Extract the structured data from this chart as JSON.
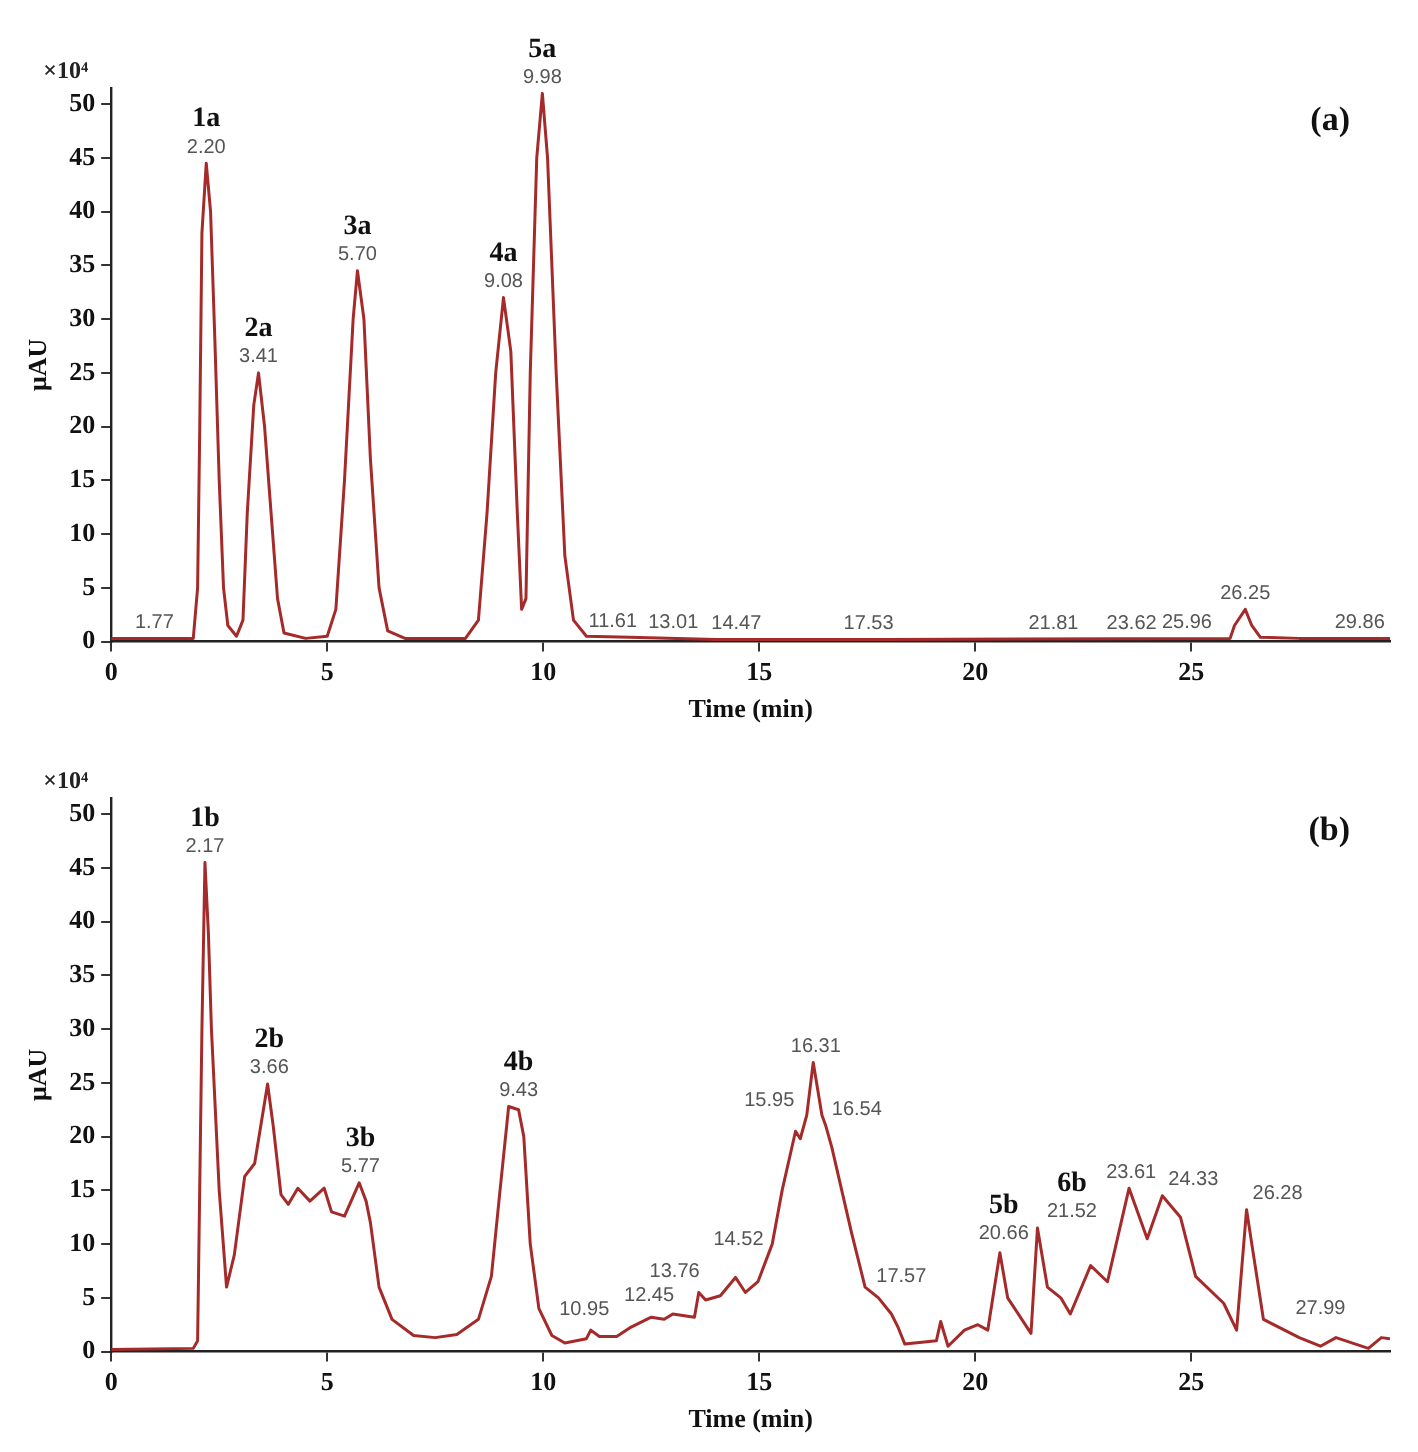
{
  "chart_data": [
    {
      "type": "line",
      "xlabel": "Time (min)",
      "ylabel": "μAU",
      "xlim": [
        0,
        29.6
      ],
      "ylim": [
        0,
        51.5
      ],
      "xticks": [
        0,
        5,
        10,
        15,
        20,
        25
      ],
      "yticks": [
        0,
        5,
        10,
        15,
        20,
        25,
        30,
        35,
        40,
        45,
        50
      ],
      "legend": false,
      "marker": "none",
      "line_style": "solid",
      "series": [
        {
          "color": "#a52a2a",
          "x": [
            0,
            1.9,
            2.0,
            2.05,
            2.1,
            2.2,
            2.3,
            2.4,
            2.5,
            2.6,
            2.7,
            2.9,
            3.05,
            3.15,
            3.3,
            3.41,
            3.55,
            3.7,
            3.85,
            4.0,
            4.5,
            5.0,
            5.2,
            5.4,
            5.6,
            5.7,
            5.85,
            6.0,
            6.2,
            6.4,
            6.8,
            8.2,
            8.5,
            8.7,
            8.9,
            9.08,
            9.25,
            9.4,
            9.5,
            9.6,
            9.7,
            9.85,
            9.98,
            10.1,
            10.3,
            10.5,
            10.7,
            11.0,
            12,
            14,
            18,
            25.9,
            26.0,
            26.25,
            26.4,
            26.6,
            27.5,
            29.6
          ],
          "values": [
            0.3,
            0.3,
            5,
            20,
            38,
            44.5,
            40,
            28,
            15,
            5,
            1.5,
            0.5,
            2,
            12,
            22,
            25,
            20,
            12,
            4,
            0.8,
            0.3,
            0.5,
            3,
            15,
            30,
            34.5,
            30,
            17,
            5,
            1,
            0.3,
            0.3,
            2,
            12,
            25,
            32,
            27,
            12,
            3,
            4,
            25,
            45,
            51,
            45,
            25,
            8,
            2,
            0.5,
            0.4,
            0.2,
            0.2,
            0.3,
            1.5,
            3.0,
            1.5,
            0.4,
            0.3,
            0.3
          ]
        }
      ],
      "annotations": [
        "×10⁴",
        "(a)",
        {
          "text": "2.20",
          "x": 2.2,
          "y": 44.5
        },
        {
          "text": "1a",
          "x": 2.2,
          "y": 44.5
        },
        {
          "text": "3.41",
          "x": 3.41,
          "y": 25
        },
        {
          "text": "2a",
          "x": 3.41,
          "y": 25
        },
        {
          "text": "5.70",
          "x": 5.7,
          "y": 34.5
        },
        {
          "text": "3a",
          "x": 5.7,
          "y": 34.5
        },
        {
          "text": "9.08",
          "x": 9.08,
          "y": 32
        },
        {
          "text": "4a",
          "x": 9.08,
          "y": 32
        },
        {
          "text": "9.98",
          "x": 9.98,
          "y": 51
        },
        {
          "text": "5a",
          "x": 9.98,
          "y": 51
        },
        {
          "text": "1.77",
          "x": 1.0,
          "y": 0.3
        },
        {
          "text": "11.61",
          "x": 11.61,
          "y": 0.4
        },
        {
          "text": "13.01",
          "x": 13.01,
          "y": 0.3
        },
        {
          "text": "14.47",
          "x": 14.47,
          "y": 0.2
        },
        {
          "text": "17.53",
          "x": 17.53,
          "y": 0.2
        },
        {
          "text": "21.81",
          "x": 21.81,
          "y": 0.2
        },
        {
          "text": "23.62",
          "x": 23.62,
          "y": 0.2
        },
        {
          "text": "25.96",
          "x": 24.9,
          "y": 0.3
        },
        {
          "text": "26.25",
          "x": 26.25,
          "y": 3.0
        },
        {
          "text": "29.86",
          "x": 28.9,
          "y": 0.3
        }
      ]
    },
    {
      "type": "line",
      "xlabel": "Time (min)",
      "ylabel": "μAU",
      "xlim": [
        0,
        29.6
      ],
      "ylim": [
        0,
        51.5
      ],
      "xticks": [
        0,
        5,
        10,
        15,
        20,
        25
      ],
      "yticks": [
        0,
        5,
        10,
        15,
        20,
        25,
        30,
        35,
        40,
        45,
        50
      ],
      "legend": false,
      "marker": "none",
      "line_style": "solid",
      "series": [
        {
          "color": "#a52a2a",
          "x": [
            0,
            1.9,
            2.0,
            2.1,
            2.17,
            2.25,
            2.32,
            2.5,
            2.67,
            2.85,
            3.09,
            3.32,
            3.62,
            3.75,
            3.93,
            4.1,
            4.32,
            4.6,
            4.93,
            5.1,
            5.4,
            5.74,
            5.9,
            6.0,
            6.2,
            6.5,
            7.0,
            7.5,
            8.0,
            8.5,
            8.8,
            9.0,
            9.2,
            9.43,
            9.55,
            9.7,
            9.9,
            10.2,
            10.5,
            11.0,
            11.1,
            11.3,
            11.7,
            12.0,
            12.5,
            12.8,
            13.0,
            13.5,
            13.6,
            13.76,
            14.1,
            14.45,
            14.68,
            14.97,
            15.3,
            15.53,
            15.84,
            15.95,
            16.1,
            16.25,
            16.45,
            16.54,
            16.68,
            17.14,
            17.45,
            17.76,
            18.06,
            18.22,
            18.37,
            19.1,
            19.2,
            19.37,
            19.75,
            20.06,
            20.29,
            20.57,
            20.75,
            21.29,
            21.44,
            21.67,
            21.98,
            22.2,
            22.67,
            23.06,
            23.56,
            23.98,
            24.33,
            24.75,
            25.1,
            25.75,
            26.05,
            26.28,
            26.44,
            26.67,
            27.5,
            27.99,
            28.35,
            29.1,
            29.4,
            29.6
          ],
          "values": [
            0.2,
            0.3,
            1,
            30,
            45.5,
            38.9,
            30,
            15,
            6,
            9,
            16.3,
            17.5,
            24.9,
            21,
            14.6,
            13.7,
            15.2,
            14,
            15.2,
            13,
            12.6,
            15.7,
            14,
            12,
            6,
            3,
            1.5,
            1.3,
            1.6,
            3,
            7,
            15,
            22.8,
            22.5,
            20,
            10,
            4,
            1.5,
            0.8,
            1.2,
            2.0,
            1.4,
            1.4,
            2.2,
            3.2,
            3.0,
            3.5,
            3.2,
            5.5,
            4.8,
            5.2,
            6.9,
            5.5,
            6.5,
            10,
            15,
            20.5,
            19.8,
            22,
            26.9,
            22,
            21,
            19,
            11,
            6,
            5,
            3.5,
            2.2,
            0.7,
            1.0,
            2.8,
            0.5,
            2,
            2.5,
            2.0,
            9.2,
            5,
            1.7,
            11.5,
            6,
            5,
            3.5,
            8,
            6.5,
            15.2,
            10.5,
            14.5,
            12.5,
            7,
            4.5,
            2,
            13.2,
            9,
            3,
            1.3,
            0.5,
            1.3,
            0.3,
            1.3,
            1.2
          ]
        }
      ],
      "annotations": [
        "×10⁴",
        "(b)",
        {
          "text": "2.17",
          "x": 2.17,
          "y": 45.5
        },
        {
          "text": "1b",
          "x": 2.17,
          "y": 45.5
        },
        {
          "text": "3.66",
          "x": 3.66,
          "y": 24.9
        },
        {
          "text": "2b",
          "x": 3.66,
          "y": 24.9
        },
        {
          "text": "5.77",
          "x": 5.77,
          "y": 15.7
        },
        {
          "text": "3b",
          "x": 5.77,
          "y": 15.7
        },
        {
          "text": "9.43",
          "x": 9.43,
          "y": 22.8
        },
        {
          "text": "4b",
          "x": 9.43,
          "y": 22.8
        },
        {
          "text": "10.95",
          "x": 10.95,
          "y": 2.4
        },
        {
          "text": "12.45",
          "x": 12.45,
          "y": 3.7
        },
        {
          "text": "13.76",
          "x": 13.76,
          "y": 6
        },
        {
          "text": "14.52",
          "x": 14.52,
          "y": 6.9
        },
        {
          "text": "15.95",
          "x": 15.95,
          "y": 19.8
        },
        {
          "text": "16.31",
          "x": 16.31,
          "y": 26.9
        },
        {
          "text": "16.54",
          "x": 16.54,
          "y": 21
        },
        {
          "text": "17.57",
          "x": 17.57,
          "y": 5.5
        },
        {
          "text": "20.66",
          "x": 20.66,
          "y": 9.5
        },
        {
          "text": "5b",
          "x": 20.66,
          "y": 9.5
        },
        {
          "text": "21.52",
          "x": 21.52,
          "y": 11.5
        },
        {
          "text": "6b",
          "x": 21.52,
          "y": 11.5
        },
        {
          "text": "23.61",
          "x": 23.61,
          "y": 15.2
        },
        {
          "text": "24.33",
          "x": 24.33,
          "y": 14.5
        },
        {
          "text": "26.28",
          "x": 26.28,
          "y": 13.2
        },
        {
          "text": "27.99",
          "x": 27.99,
          "y": 0.5
        }
      ]
    }
  ]
}
